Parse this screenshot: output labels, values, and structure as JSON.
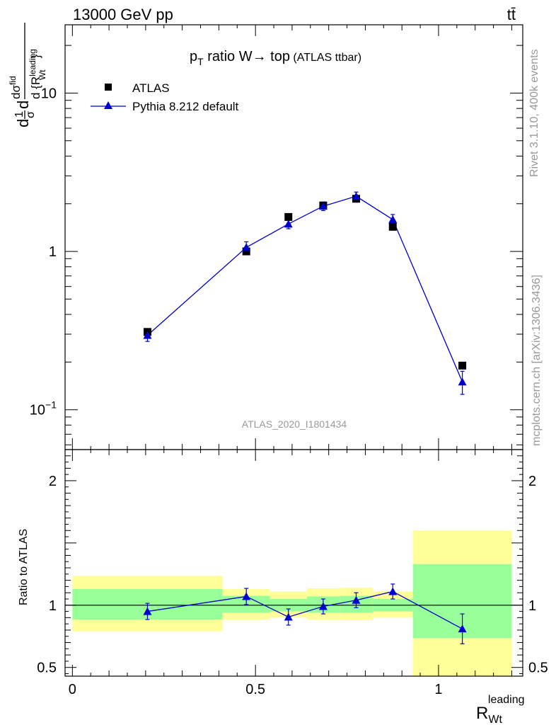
{
  "header": {
    "left": "13000 GeV pp",
    "right": "tt̄"
  },
  "side_labels": {
    "rivet": "Rivet 3.1.10,  400k events",
    "mcplots": "mcplots.cern.ch [arXiv:1306.3436]"
  },
  "main_plot": {
    "title_main": "p",
    "title_sub": "T",
    "title_rest": " ratio W→ top",
    "title_small": " (ATLAS ttbar)",
    "watermark": "ATLAS_2020_I1801434",
    "ylabel_parts": [
      "d",
      "1",
      "σ",
      "d",
      "dσ",
      "fid",
      "d {R",
      "leading",
      "Wt",
      "}"
    ]
  },
  "ratio_plot": {
    "ylabel": "Ratio to ATLAS"
  },
  "x_axis": {
    "label_main": "R",
    "label_sub": "Wt",
    "label_sup": "leading"
  },
  "chart_data": {
    "type": "scatter",
    "xlim": [
      -0.02,
      1.23
    ],
    "main": {
      "yscale": "log",
      "ylim": [
        0.056,
        27
      ],
      "ytick_labels": [
        {
          "value": 0.1,
          "label": "10",
          "sup": "−1"
        },
        {
          "value": 1,
          "label": "1",
          "sup": ""
        },
        {
          "value": 10,
          "label": "10",
          "sup": ""
        }
      ]
    },
    "ratio": {
      "ylim": [
        0.43,
        2.25
      ],
      "ytick_labels": [
        {
          "value": 0.5,
          "label": "0.5"
        },
        {
          "value": 1,
          "label": "1"
        },
        {
          "value": 2,
          "label": "2"
        }
      ]
    },
    "xtick_labels": [
      {
        "value": 0,
        "label": "0"
      },
      {
        "value": 0.5,
        "label": "0.5"
      },
      {
        "value": 1,
        "label": "1"
      }
    ],
    "legend_position": "top-left",
    "series": [
      {
        "name": "ATLAS",
        "color": "#000000",
        "marker": "square",
        "x": [
          0.205,
          0.475,
          0.59,
          0.685,
          0.775,
          0.875,
          1.065
        ],
        "y": [
          0.31,
          1.0,
          1.65,
          1.95,
          2.15,
          1.43,
          0.19
        ]
      },
      {
        "name": "Pythia 8.212 default",
        "color": "#0000cc",
        "marker": "triangle",
        "x": [
          0.205,
          0.475,
          0.59,
          0.685,
          0.775,
          0.875,
          1.065
        ],
        "y": [
          0.295,
          1.06,
          1.49,
          1.93,
          2.23,
          1.59,
          0.15
        ],
        "yerr": [
          0.025,
          0.09,
          0.1,
          0.12,
          0.14,
          0.12,
          0.025
        ],
        "ratio": [
          0.95,
          1.07,
          0.905,
          0.99,
          1.04,
          1.11,
          0.81
        ],
        "ratio_err": [
          0.065,
          0.065,
          0.065,
          0.06,
          0.06,
          0.06,
          0.12
        ]
      }
    ],
    "bands": [
      {
        "x0": 0.0,
        "x1": 0.41,
        "yellow": [
          0.79,
          1.235
        ],
        "green": [
          0.885,
          1.13
        ]
      },
      {
        "x0": 0.41,
        "x1": 0.54,
        "yellow": [
          0.885,
          1.13
        ],
        "green": [
          0.94,
          1.075
        ]
      },
      {
        "x0": 0.54,
        "x1": 0.64,
        "yellow": [
          0.9,
          1.11
        ],
        "green": [
          0.95,
          1.05
        ]
      },
      {
        "x0": 0.64,
        "x1": 0.73,
        "yellow": [
          0.885,
          1.135
        ],
        "green": [
          0.94,
          1.07
        ]
      },
      {
        "x0": 0.73,
        "x1": 0.82,
        "yellow": [
          0.88,
          1.14
        ],
        "green": [
          0.94,
          1.075
        ]
      },
      {
        "x0": 0.82,
        "x1": 0.93,
        "yellow": [
          0.9,
          1.11
        ],
        "green": [
          0.95,
          1.05
        ]
      },
      {
        "x0": 0.93,
        "x1": 1.2,
        "yellow": [
          0.43,
          1.6
        ],
        "green": [
          0.735,
          1.33
        ]
      }
    ]
  }
}
